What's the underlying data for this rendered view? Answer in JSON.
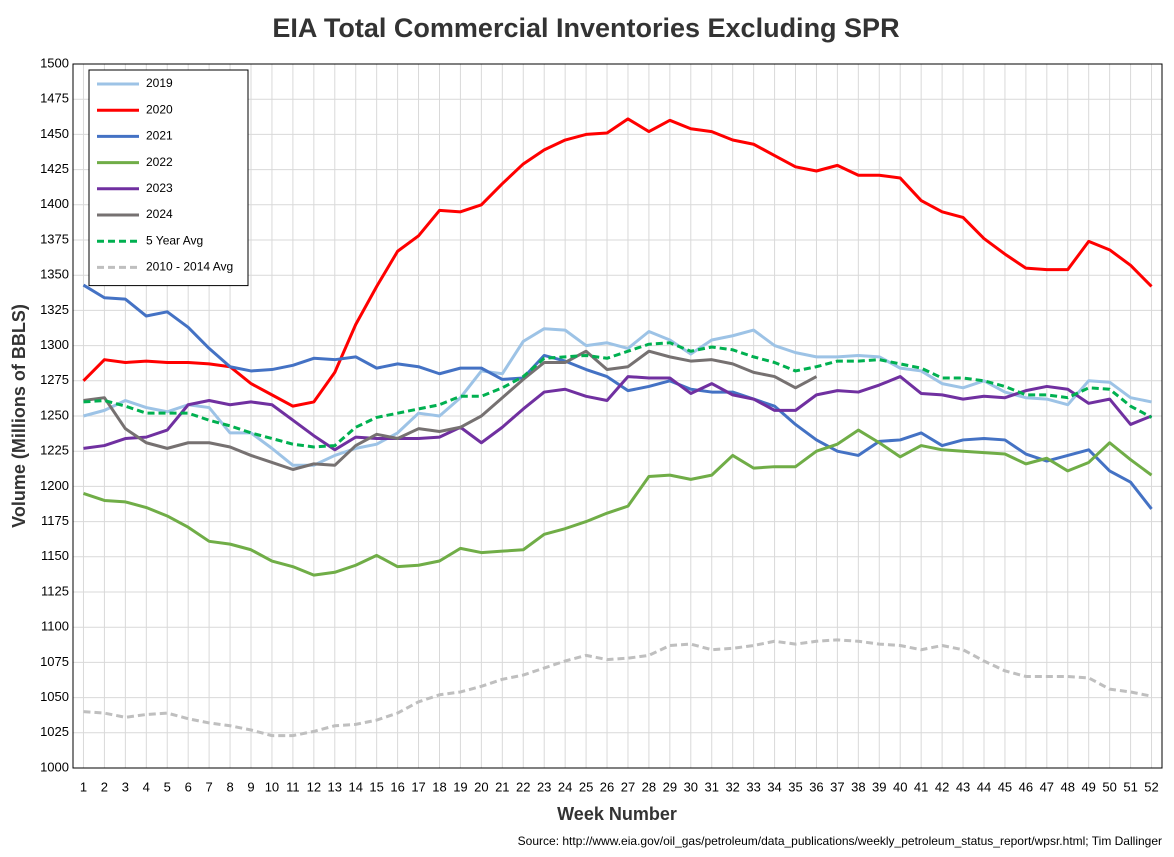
{
  "chart_data": {
    "type": "line",
    "title": "EIA Total Commercial Inventories Excluding SPR",
    "x_label": "Week Number",
    "y_label": "Volume (Millions of BBLS)",
    "source": "Source: http://www.eia.gov/oil_gas/petroleum/data_publications/weekly_petroleum_status_report/wpsr.html; Tim Dallinger",
    "categories": [
      "1",
      "2",
      "3",
      "4",
      "5",
      "6",
      "7",
      "8",
      "9",
      "10",
      "11",
      "12",
      "13",
      "14",
      "15",
      "16",
      "17",
      "18",
      "19",
      "20",
      "21",
      "22",
      "23",
      "24",
      "25",
      "26",
      "27",
      "28",
      "29",
      "30",
      "31",
      "32",
      "33",
      "34",
      "35",
      "36",
      "37",
      "38",
      "39",
      "40",
      "41",
      "42",
      "43",
      "44",
      "45",
      "46",
      "47",
      "48",
      "49",
      "50",
      "51",
      "52"
    ],
    "ylim": [
      1000,
      1500
    ],
    "yticks": [
      1000,
      1025,
      1050,
      1075,
      1100,
      1125,
      1150,
      1175,
      1200,
      1225,
      1250,
      1275,
      1300,
      1325,
      1350,
      1375,
      1400,
      1425,
      1450,
      1475,
      1500
    ],
    "grid": true,
    "legend": "top-left",
    "series": [
      {
        "name": "2019",
        "color": "#9dc3e6",
        "dashed": false,
        "values": [
          1250,
          1254,
          1261,
          1256,
          1253,
          1258,
          1256,
          1238,
          1238,
          1227,
          1215,
          1215,
          1222,
          1227,
          1230,
          1238,
          1252,
          1250,
          1263,
          1282,
          1280,
          1303,
          1312,
          1311,
          1300,
          1302,
          1298,
          1310,
          1304,
          1294,
          1304,
          1307,
          1311,
          1300,
          1295,
          1292,
          1292,
          1293,
          1292,
          1284,
          1282,
          1273,
          1270,
          1275,
          1267,
          1263,
          1262,
          1258,
          1275,
          1274,
          1263,
          1260
        ]
      },
      {
        "name": "2020",
        "color": "#ff0000",
        "dashed": false,
        "values": [
          1275,
          1290,
          1288,
          1289,
          1288,
          1288,
          1287,
          1285,
          1273,
          1265,
          1257,
          1260,
          1281,
          1315,
          1342,
          1367,
          1378,
          1396,
          1395,
          1400,
          1415,
          1429,
          1439,
          1446,
          1450,
          1451,
          1461,
          1452,
          1460,
          1454,
          1452,
          1446,
          1443,
          1435,
          1427,
          1424,
          1428,
          1421,
          1421,
          1419,
          1403,
          1395,
          1391,
          1376,
          1365,
          1355,
          1354,
          1354,
          1374,
          1368,
          1357,
          1342
        ]
      },
      {
        "name": "2021",
        "color": "#4472c4",
        "dashed": false,
        "values": [
          1343,
          1334,
          1333,
          1321,
          1324,
          1313,
          1298,
          1285,
          1282,
          1283,
          1286,
          1291,
          1290,
          1292,
          1284,
          1287,
          1285,
          1280,
          1284,
          1284,
          1276,
          1277,
          1293,
          1289,
          1283,
          1278,
          1268,
          1271,
          1275,
          1269,
          1267,
          1267,
          1262,
          1257,
          1244,
          1233,
          1225,
          1222,
          1232,
          1233,
          1238,
          1229,
          1233,
          1234,
          1233,
          1223,
          1218,
          1222,
          1226,
          1211,
          1203,
          1184
        ]
      },
      {
        "name": "2022",
        "color": "#70ad47",
        "dashed": false,
        "values": [
          1195,
          1190,
          1189,
          1185,
          1179,
          1171,
          1161,
          1159,
          1155,
          1147,
          1143,
          1137,
          1139,
          1144,
          1151,
          1143,
          1144,
          1147,
          1156,
          1153,
          1154,
          1155,
          1166,
          1170,
          1175,
          1181,
          1186,
          1207,
          1208,
          1205,
          1208,
          1222,
          1213,
          1214,
          1214,
          1225,
          1230,
          1240,
          1231,
          1221,
          1229,
          1226,
          1225,
          1224,
          1223,
          1216,
          1220,
          1211,
          1217,
          1231,
          1219,
          1208
        ]
      },
      {
        "name": "2023",
        "color": "#7030a0",
        "dashed": false,
        "values": [
          1227,
          1229,
          1234,
          1235,
          1240,
          1258,
          1261,
          1258,
          1260,
          1258,
          1247,
          1236,
          1226,
          1235,
          1234,
          1234,
          1234,
          1235,
          1242,
          1231,
          1242,
          1255,
          1267,
          1269,
          1264,
          1261,
          1278,
          1277,
          1277,
          1266,
          1273,
          1265,
          1262,
          1254,
          1254,
          1265,
          1268,
          1267,
          1272,
          1278,
          1266,
          1265,
          1262,
          1264,
          1263,
          1268,
          1271,
          1269,
          1259,
          1262,
          1244,
          1250
        ]
      },
      {
        "name": "2024",
        "color": "#767171",
        "dashed": false,
        "values": [
          1261,
          1263,
          1241,
          1231,
          1227,
          1231,
          1231,
          1228,
          1222,
          1217,
          1212,
          1216,
          1215,
          1229,
          1237,
          1234,
          1241,
          1239,
          1242,
          1250,
          1263,
          1276,
          1288,
          1288,
          1296,
          1283,
          1285,
          1296,
          1292,
          1289,
          1290,
          1287,
          1281,
          1278,
          1270,
          1278,
          null,
          null,
          null,
          null,
          null,
          null,
          null,
          null,
          null,
          null,
          null,
          null,
          null,
          null,
          null,
          null
        ]
      },
      {
        "name": "5 Year Avg",
        "color": "#00b050",
        "dashed": true,
        "values": [
          1260,
          1261,
          1257,
          1252,
          1252,
          1252,
          1247,
          1243,
          1238,
          1234,
          1230,
          1228,
          1229,
          1242,
          1249,
          1252,
          1255,
          1258,
          1264,
          1264,
          1270,
          1278,
          1291,
          1292,
          1293,
          1291,
          1296,
          1301,
          1302,
          1296,
          1299,
          1297,
          1292,
          1288,
          1282,
          1285,
          1289,
          1289,
          1290,
          1287,
          1284,
          1277,
          1277,
          1275,
          1271,
          1265,
          1265,
          1263,
          1270,
          1269,
          1257,
          1249
        ]
      },
      {
        "name": "2010 - 2014 Avg",
        "color": "#bfbfbf",
        "dashed": true,
        "values": [
          1040,
          1039,
          1036,
          1038,
          1039,
          1035,
          1032,
          1030,
          1027,
          1023,
          1023,
          1026,
          1030,
          1031,
          1034,
          1039,
          1047,
          1052,
          1054,
          1058,
          1063,
          1066,
          1071,
          1076,
          1080,
          1077,
          1078,
          1080,
          1087,
          1088,
          1084,
          1085,
          1087,
          1090,
          1088,
          1090,
          1091,
          1090,
          1088,
          1087,
          1084,
          1087,
          1084,
          1076,
          1069,
          1065,
          1065,
          1065,
          1064,
          1056,
          1054,
          1051
        ]
      }
    ]
  }
}
